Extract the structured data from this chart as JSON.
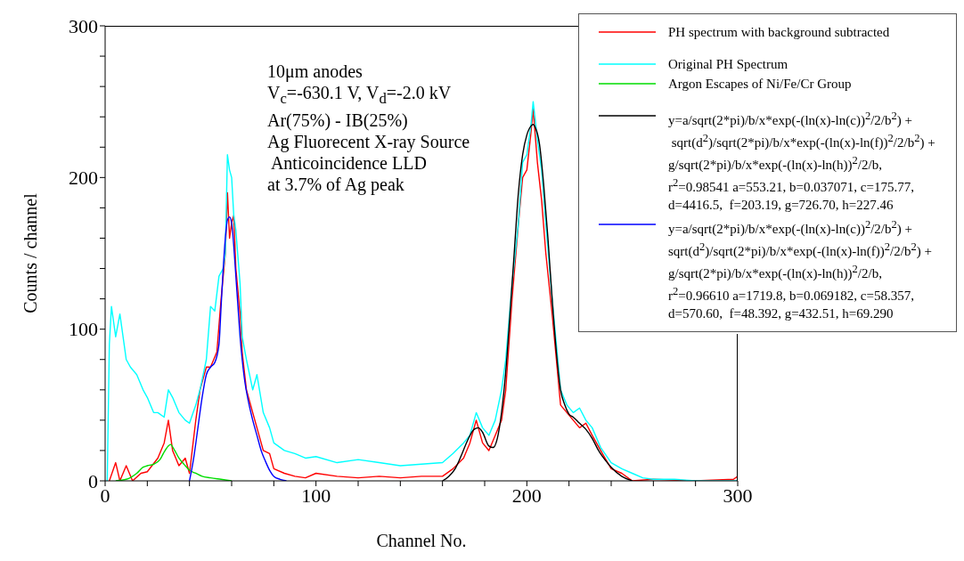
{
  "chart_data": {
    "type": "line",
    "xlabel": "Channel No.",
    "ylabel": "Counts / channel",
    "xlim": [
      0,
      300
    ],
    "ylim": [
      0,
      300
    ],
    "xticks": [
      0,
      {
        "value": 20,
        "label": null
      },
      {
        "value": 40,
        "label": null
      },
      {
        "value": 60,
        "label": null
      },
      {
        "value": 80,
        "label": null
      },
      100,
      {
        "value": 120,
        "label": null
      },
      {
        "value": 140,
        "label": null
      },
      {
        "value": 160,
        "label": null
      },
      {
        "value": 180,
        "label": null
      },
      200,
      {
        "value": 220,
        "label": null
      },
      {
        "value": 240,
        "label": null
      },
      {
        "value": 260,
        "label": null
      },
      {
        "value": 280,
        "label": null
      },
      300
    ],
    "yticks": [
      0,
      {
        "value": 20,
        "label": null
      },
      {
        "value": 40,
        "label": null
      },
      {
        "value": 60,
        "label": null
      },
      {
        "value": 80,
        "label": null
      },
      100,
      {
        "value": 120,
        "label": null
      },
      {
        "value": 140,
        "label": null
      },
      {
        "value": 160,
        "label": null
      },
      {
        "value": 180,
        "label": null
      },
      200,
      {
        "value": 220,
        "label": null
      },
      {
        "value": 240,
        "label": null
      },
      {
        "value": 260,
        "label": null
      },
      {
        "value": 280,
        "label": null
      },
      300
    ],
    "grid": false,
    "legend": "top right",
    "marker": "none",
    "line_style": "solid",
    "annotations": [
      "10μm anodes",
      "V$_{c}$=-630.1 V, V$_{d}$=-2.0 kV",
      "Ar(75%) - IB(25%)",
      "Ag Fluorecent X-ray Source",
      " Anticoincidence LLD",
      "at 3.7% of Ag peak"
    ],
    "series": [
      {
        "name": "PH spectrum with background subtracted",
        "color": "#ff0000",
        "x": [
          2,
          5,
          7,
          10,
          13,
          17,
          20,
          25,
          28,
          30,
          32,
          35,
          38,
          40,
          43,
          45,
          48,
          50,
          53,
          55,
          57,
          58,
          59,
          60,
          61,
          62,
          64,
          65,
          67,
          70,
          72,
          75,
          78,
          80,
          85,
          90,
          95,
          100,
          110,
          120,
          130,
          140,
          150,
          160,
          165,
          170,
          173,
          176,
          179,
          182,
          185,
          188,
          190,
          193,
          196,
          198,
          200,
          202,
          203,
          205,
          207,
          209,
          212,
          214,
          216,
          219,
          222,
          225,
          228,
          231,
          235,
          240,
          245,
          250,
          260,
          280,
          298,
          300
        ],
        "values": [
          0,
          12,
          0,
          10,
          0,
          5,
          6,
          15,
          25,
          40,
          20,
          10,
          15,
          5,
          40,
          60,
          75,
          75,
          85,
          120,
          150,
          190,
          160,
          170,
          175,
          140,
          110,
          85,
          60,
          45,
          35,
          20,
          18,
          8,
          5,
          3,
          2,
          5,
          3,
          2,
          3,
          2,
          3,
          3,
          8,
          15,
          25,
          40,
          25,
          20,
          30,
          40,
          60,
          120,
          170,
          200,
          205,
          230,
          245,
          210,
          185,
          150,
          110,
          80,
          50,
          45,
          40,
          35,
          38,
          30,
          20,
          8,
          5,
          0,
          1,
          0,
          1,
          3
        ]
      },
      {
        "name": "Original PH Spectrum",
        "color": "#00ffff",
        "x": [
          1,
          2,
          3,
          5,
          7,
          9,
          10,
          12,
          15,
          18,
          20,
          23,
          25,
          28,
          30,
          32,
          35,
          38,
          40,
          43,
          45,
          48,
          50,
          52,
          54,
          56,
          57,
          58,
          59,
          60,
          61,
          62,
          64,
          65,
          67,
          70,
          72,
          75,
          78,
          80,
          85,
          90,
          95,
          100,
          110,
          120,
          130,
          140,
          150,
          160,
          165,
          170,
          173,
          176,
          179,
          182,
          185,
          188,
          190,
          193,
          196,
          198,
          200,
          202,
          203,
          205,
          207,
          209,
          212,
          214,
          216,
          219,
          222,
          225,
          228,
          231,
          235,
          240,
          245,
          250,
          255,
          260,
          270,
          280,
          300
        ],
        "values": [
          0,
          90,
          115,
          95,
          110,
          90,
          80,
          75,
          70,
          60,
          55,
          45,
          45,
          42,
          60,
          55,
          45,
          40,
          38,
          50,
          60,
          80,
          115,
          112,
          135,
          140,
          150,
          215,
          205,
          200,
          175,
          165,
          130,
          95,
          80,
          60,
          70,
          45,
          35,
          25,
          20,
          18,
          15,
          16,
          12,
          14,
          12,
          10,
          11,
          12,
          18,
          25,
          30,
          45,
          35,
          30,
          40,
          60,
          80,
          130,
          170,
          210,
          215,
          235,
          250,
          225,
          205,
          170,
          120,
          90,
          60,
          50,
          45,
          48,
          40,
          35,
          22,
          12,
          8,
          5,
          2,
          1,
          1,
          0,
          0
        ]
      },
      {
        "name": "Argon Escapes of Ni/Fe/Cr Group",
        "color": "#00dd00",
        "x": [
          5,
          10,
          15,
          18,
          20,
          23,
          26,
          28,
          30,
          31,
          33,
          35,
          38,
          40,
          43,
          46,
          50,
          55,
          60
        ],
        "values": [
          0,
          1,
          5,
          9,
          10,
          11,
          14,
          19,
          23,
          24,
          20,
          15,
          10,
          7,
          5,
          3,
          2,
          1,
          0
        ]
      },
      {
        "name": "y=a/sqrt(2*pi)/b/x*exp(-(ln(x)-ln(c))$^{2}$/2/b$^{2}$) +\n sqrt(d$^{2}$)/sqrt(2*pi)/b/x*exp(-(ln(x)-ln(f))$^{2}$/2/b$^{2}$) +\ng/sqrt(2*pi)/b/x*exp(-(ln(x)-ln(h))$^{2}$/2/b,\nr$^{2}$=0.98541 a=553.21, b=0.037071, c=175.77,\nd=4416.5,  f=203.19, g=726.70, h=227.46",
        "color": "#000000",
        "x": [
          160,
          163,
          166,
          169,
          172,
          175,
          177,
          179,
          182,
          184,
          186,
          188,
          190,
          192,
          194,
          196,
          198,
          200,
          202,
          203,
          204,
          206,
          208,
          210,
          212,
          214,
          216,
          218,
          220,
          222,
          225,
          228,
          231,
          234,
          237,
          240,
          245,
          250
        ],
        "values": [
          0,
          3,
          8,
          17,
          27,
          34,
          35,
          32,
          23,
          22,
          28,
          45,
          72,
          110,
          150,
          190,
          215,
          228,
          234,
          235,
          233,
          222,
          195,
          160,
          120,
          85,
          60,
          50,
          44,
          42,
          38,
          34,
          28,
          20,
          14,
          9,
          3,
          0
        ]
      },
      {
        "name": "y=a/sqrt(2*pi)/b/x*exp(-(ln(x)-ln(c))$^{2}$/2/b$^{2}$) +\nsqrt(d$^{2}$)/sqrt(2*pi)/b/x*exp(-(ln(x)-ln(f))$^{2}$/2/b$^{2}$) +\ng/sqrt(2*pi)/b/x*exp(-(ln(x)-ln(h))$^{2}$/2/b,\nr$^{2}$=0.96610 a=1719.8, b=0.069182, c=58.357,\nd=570.60,  f=48.392, g=432.51, h=69.290",
        "color": "#0000ff",
        "x": [
          40,
          42,
          44,
          46,
          48,
          50,
          52,
          54,
          55,
          56,
          57,
          58,
          59,
          60,
          61,
          62,
          63,
          64,
          65,
          66,
          68,
          70,
          72,
          74,
          76,
          78,
          80,
          83,
          86
        ],
        "values": [
          0,
          15,
          35,
          55,
          70,
          75,
          78,
          90,
          115,
          140,
          160,
          172,
          174,
          170,
          155,
          135,
          115,
          95,
          80,
          68,
          52,
          40,
          30,
          20,
          13,
          7,
          3,
          1,
          0
        ]
      }
    ]
  }
}
